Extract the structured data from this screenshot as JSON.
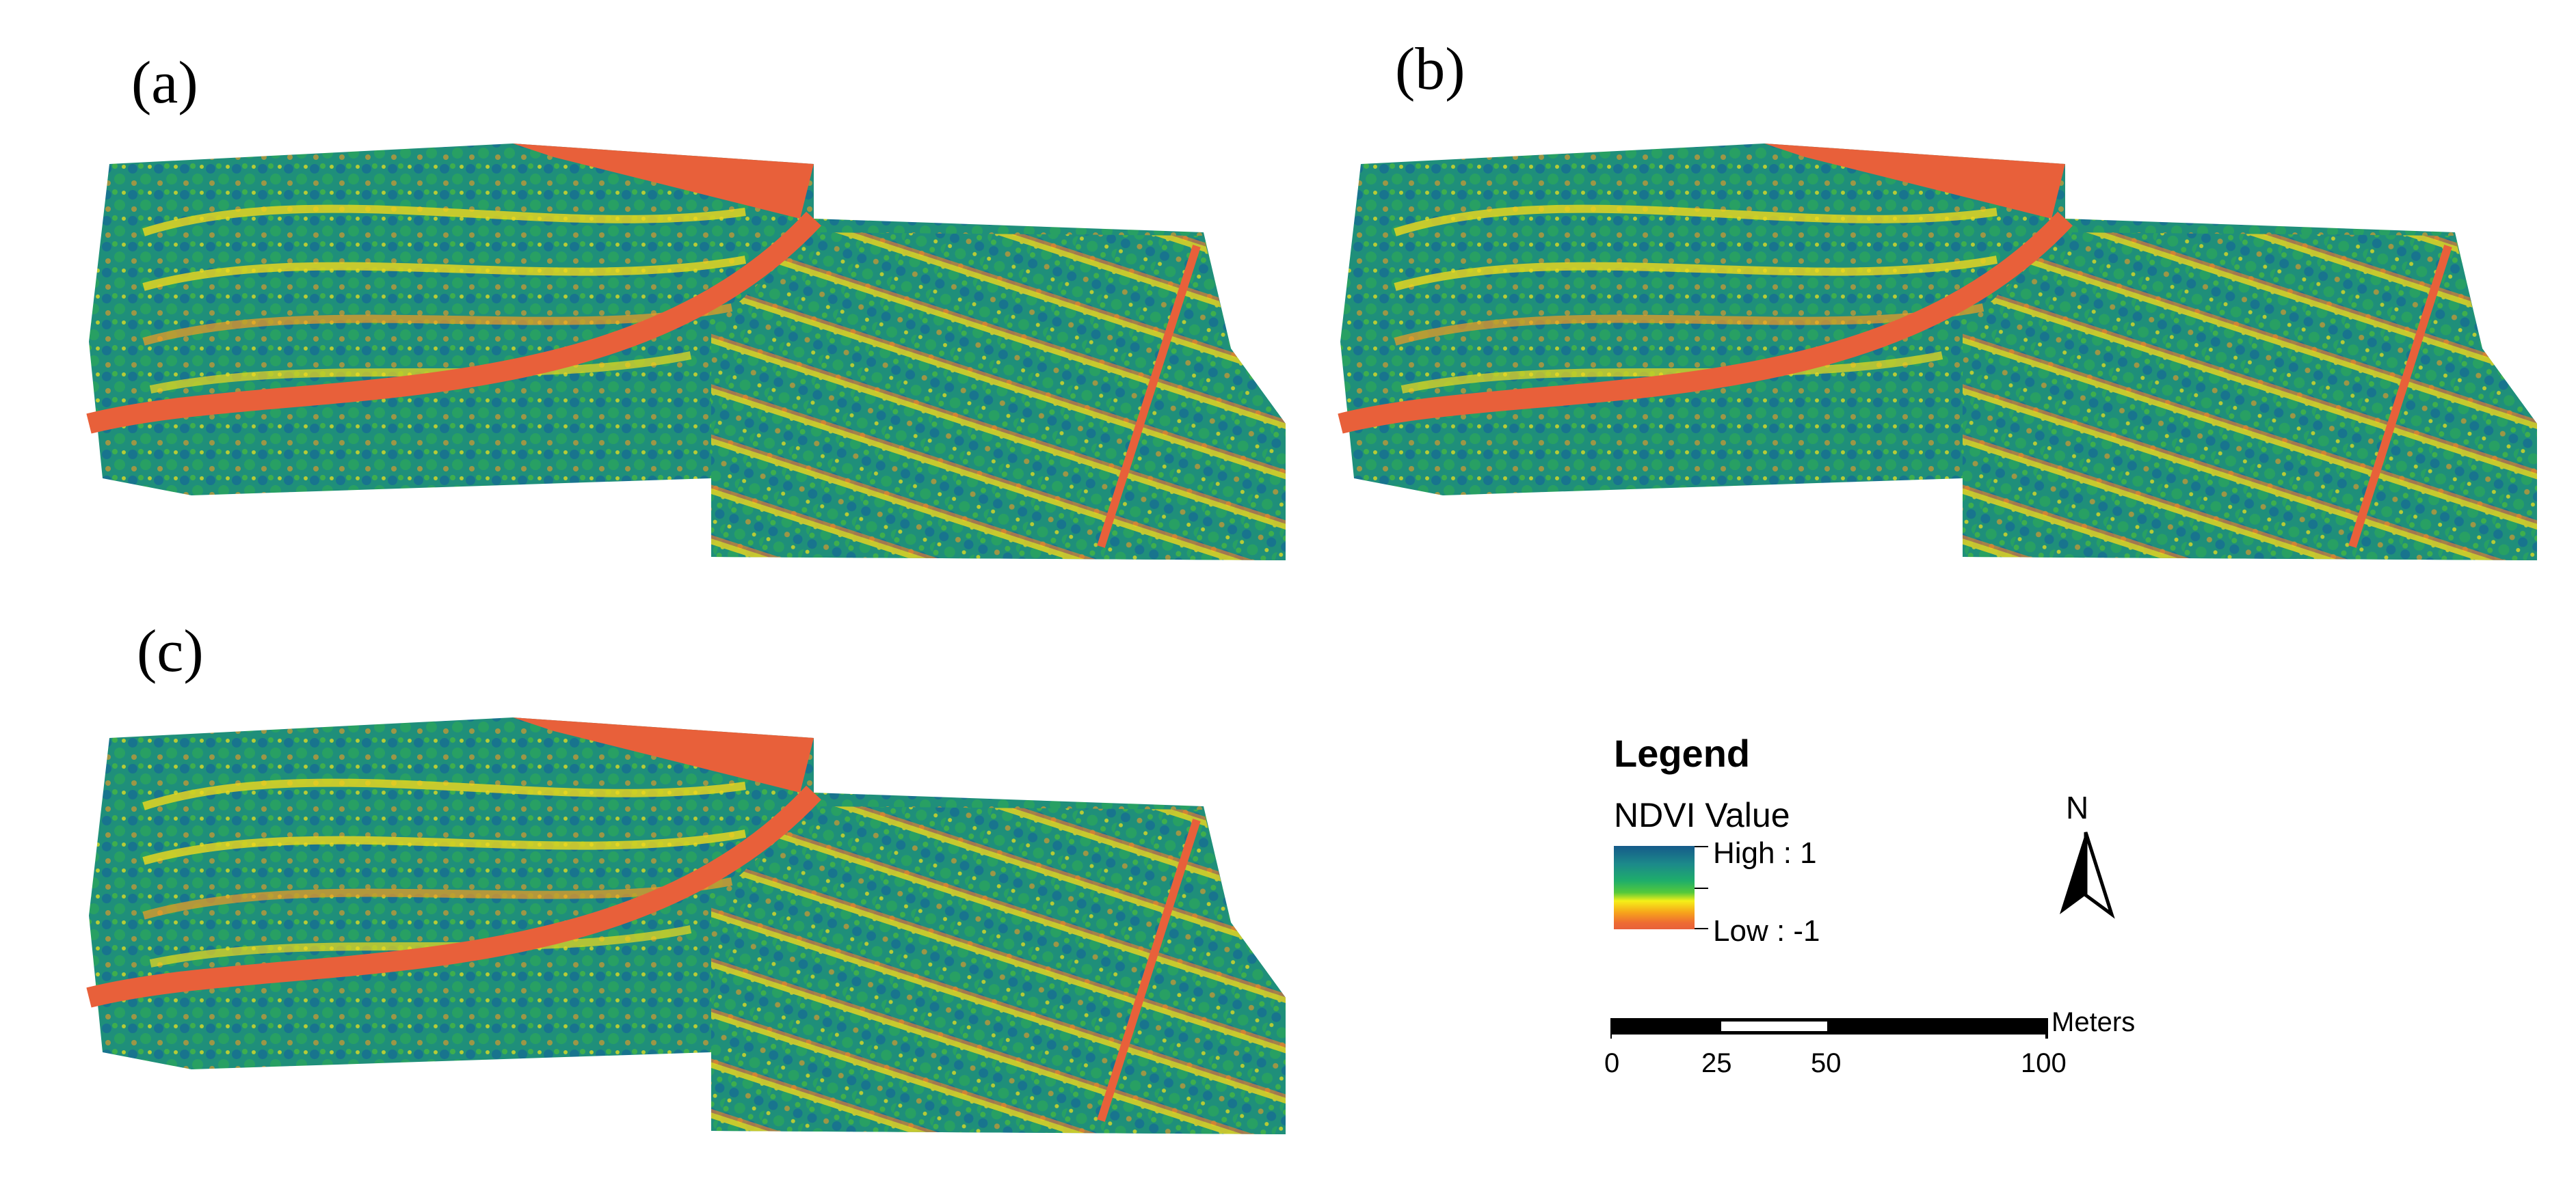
{
  "panels": [
    {
      "label": "(a)"
    },
    {
      "label": "(b)"
    },
    {
      "label": "(c)"
    }
  ],
  "legend": {
    "title": "Legend",
    "subtitle": "NDVI Value",
    "high_label": "High : 1",
    "low_label": "Low : -1",
    "colors": [
      "#155a8a",
      "#1fae6a",
      "#f5f018",
      "#e8603a"
    ]
  },
  "north_arrow": {
    "letter": "N"
  },
  "scale_bar": {
    "units": "Meters",
    "ticks": [
      "0",
      "25",
      "50",
      "100"
    ]
  }
}
